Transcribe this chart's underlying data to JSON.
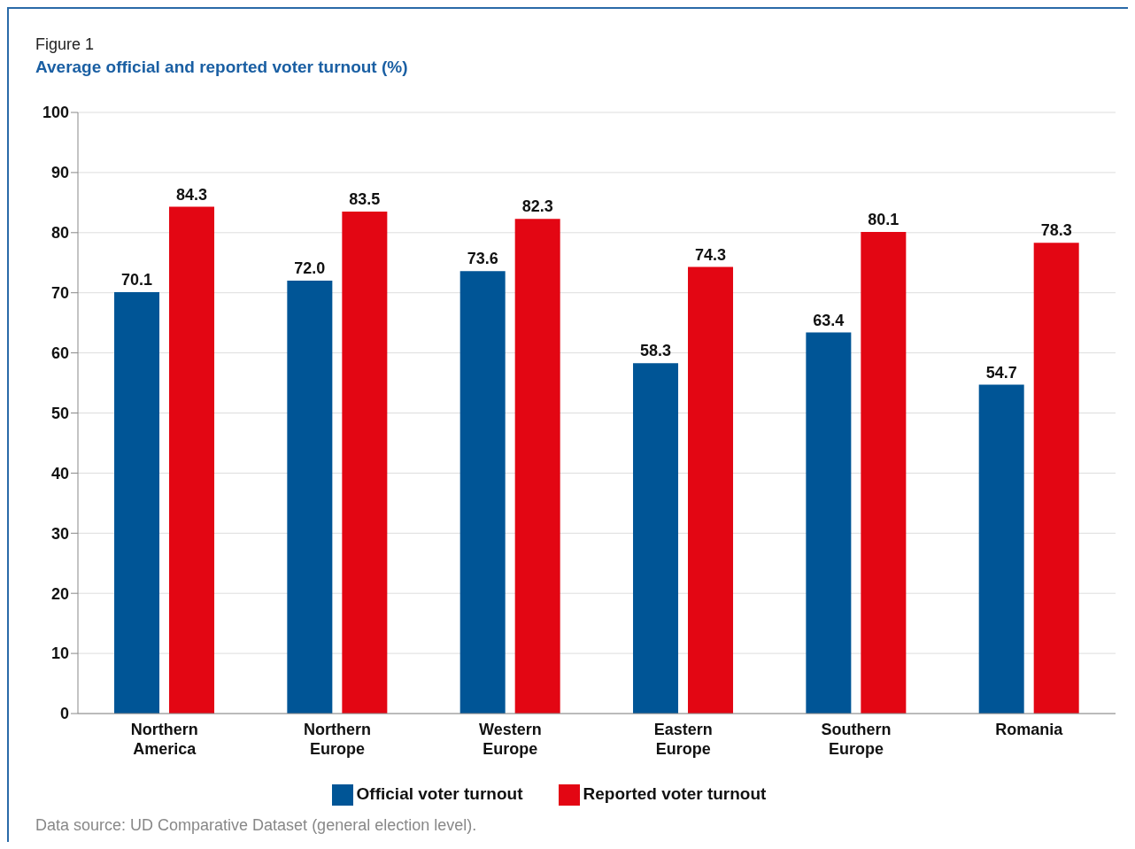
{
  "chart_data": {
    "type": "bar",
    "title": "Figure 1",
    "subtitle": "Average official and reported voter turnout (%)",
    "categories": [
      "Northern America",
      "Northern Europe",
      "Western Europe",
      "Eastern Europe",
      "Southern Europe",
      "Romania"
    ],
    "series": [
      {
        "name": "Official voter turnout",
        "color": "#005596",
        "values": [
          70.1,
          72.0,
          73.6,
          58.3,
          63.4,
          54.7
        ],
        "value_labels": [
          "70.1",
          "72.0",
          "73.6",
          "58.3",
          "63.4",
          "54.7"
        ]
      },
      {
        "name": "Reported voter turnout",
        "color": "#e30613",
        "values": [
          84.3,
          83.5,
          82.3,
          74.3,
          80.1,
          78.3
        ],
        "value_labels": [
          "84.3",
          "83.5",
          "82.3",
          "74.3",
          "80.1",
          "78.3"
        ]
      }
    ],
    "ylim": [
      0,
      100
    ],
    "yticks": [
      0,
      10,
      20,
      30,
      40,
      50,
      60,
      70,
      80,
      90,
      100
    ],
    "grid": "y",
    "legend": "bottom",
    "annotations": [
      "Data source: UD Comparative Dataset (general election level)."
    ]
  }
}
